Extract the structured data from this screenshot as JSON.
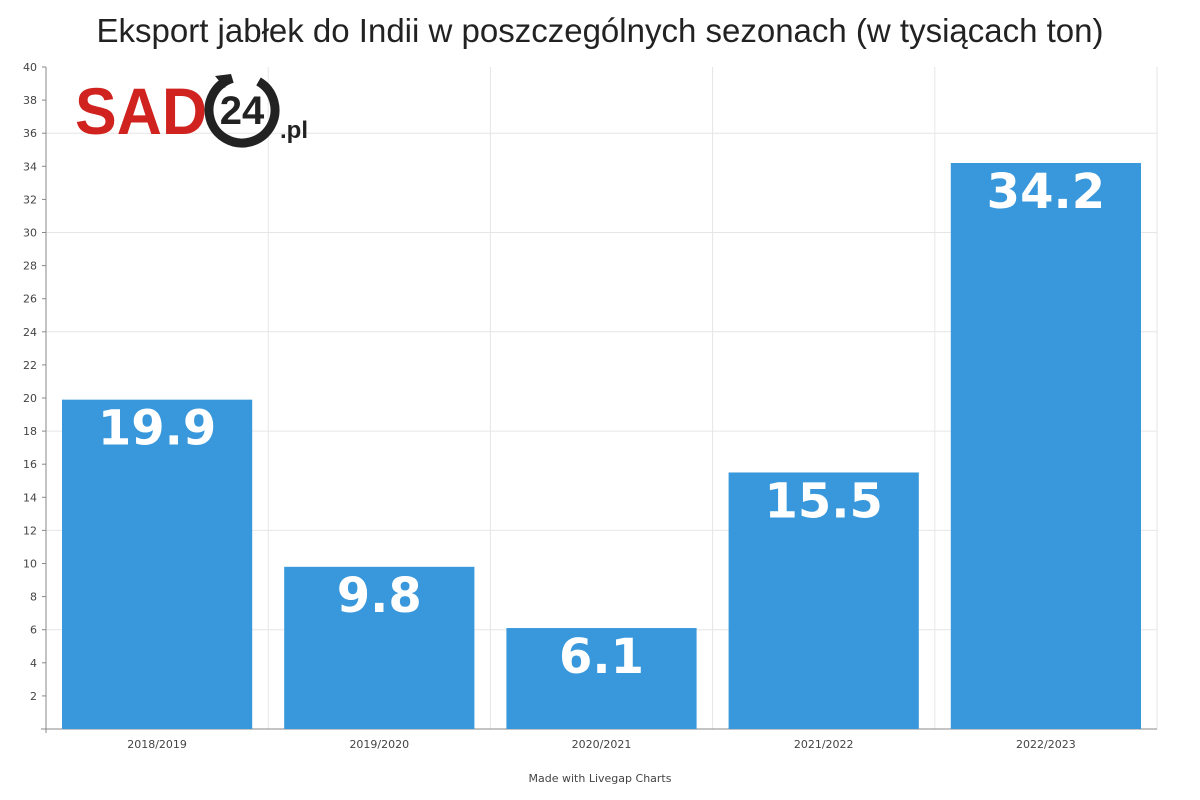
{
  "chart_data": {
    "type": "bar",
    "title": "Eksport jabłek do Indii w poszczególnych sezonach (w tysiącach ton)",
    "categories": [
      "2018/2019",
      "2019/2020",
      "2020/2021",
      "2021/2022",
      "2022/2023"
    ],
    "values": [
      19.9,
      9.8,
      6.1,
      15.5,
      34.2
    ],
    "data_labels": [
      "19.9",
      "9.8",
      "6.1",
      "15.5",
      "34.2"
    ],
    "xlabel": "",
    "ylabel": "",
    "ylim": [
      0,
      40
    ],
    "yticks": [
      2,
      4,
      6,
      8,
      10,
      12,
      14,
      16,
      18,
      20,
      22,
      24,
      26,
      28,
      30,
      32,
      34,
      36,
      38,
      40
    ],
    "grid_lines_y": [
      6,
      12,
      18,
      24,
      30,
      36
    ],
    "grid": true,
    "legend": "none",
    "bar_color": "#3898db"
  },
  "logo": {
    "text": "SAD24.pl",
    "red": "#d0231f",
    "dark": "#222222"
  },
  "credit": "Made with Livegap Charts"
}
